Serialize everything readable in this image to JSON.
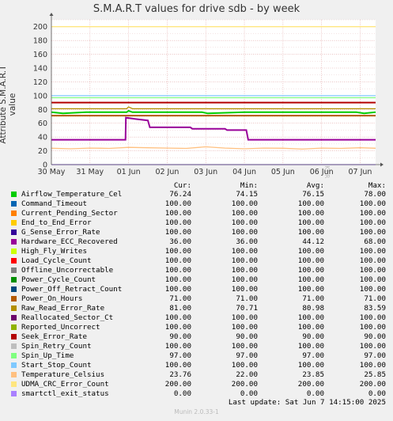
{
  "page": {
    "title": "S.M.A.R.T values for drive sdb - by week",
    "side_text": "RRDTOOL / TOBI OETIKER",
    "last_update": "Last update:  Sat Jun  7 14:15:00 2025",
    "footer": "Munin 2.0.33-1"
  },
  "legend_headers": {
    "cur": "Cur:",
    "min": "Min:",
    "avg": "Avg:",
    "max": "Max:"
  },
  "legend": [
    {
      "name": "Airflow_Temperature_Cel",
      "color": "#00cc00",
      "cur": "76.24",
      "min": "74.15",
      "avg": "76.15",
      "max": "78.00"
    },
    {
      "name": "Command_Timeout",
      "color": "#0066b3",
      "cur": "100.00",
      "min": "100.00",
      "avg": "100.00",
      "max": "100.00"
    },
    {
      "name": "Current_Pending_Sector",
      "color": "#ff8000",
      "cur": "100.00",
      "min": "100.00",
      "avg": "100.00",
      "max": "100.00"
    },
    {
      "name": "End_to_End_Error",
      "color": "#ffcc00",
      "cur": "100.00",
      "min": "100.00",
      "avg": "100.00",
      "max": "100.00"
    },
    {
      "name": "G_Sense_Error_Rate",
      "color": "#330099",
      "cur": "100.00",
      "min": "100.00",
      "avg": "100.00",
      "max": "100.00"
    },
    {
      "name": "Hardware_ECC_Recovered",
      "color": "#990099",
      "cur": "36.00",
      "min": "36.00",
      "avg": "44.12",
      "max": "68.00"
    },
    {
      "name": "High_Fly_Writes",
      "color": "#ccff00",
      "cur": "100.00",
      "min": "100.00",
      "avg": "100.00",
      "max": "100.00"
    },
    {
      "name": "Load_Cycle_Count",
      "color": "#ff0000",
      "cur": "100.00",
      "min": "100.00",
      "avg": "100.00",
      "max": "100.00"
    },
    {
      "name": "Offline_Uncorrectable",
      "color": "#808080",
      "cur": "100.00",
      "min": "100.00",
      "avg": "100.00",
      "max": "100.00"
    },
    {
      "name": "Power_Cycle_Count",
      "color": "#008f00",
      "cur": "100.00",
      "min": "100.00",
      "avg": "100.00",
      "max": "100.00"
    },
    {
      "name": "Power_Off_Retract_Count",
      "color": "#00487d",
      "cur": "100.00",
      "min": "100.00",
      "avg": "100.00",
      "max": "100.00"
    },
    {
      "name": "Power_On_Hours",
      "color": "#b35a00",
      "cur": "71.00",
      "min": "71.00",
      "avg": "71.00",
      "max": "71.00"
    },
    {
      "name": "Raw_Read_Error_Rate",
      "color": "#b38f00",
      "cur": "81.00",
      "min": "70.71",
      "avg": "80.98",
      "max": "83.59"
    },
    {
      "name": "Reallocated_Sector_Ct",
      "color": "#6b006b",
      "cur": "100.00",
      "min": "100.00",
      "avg": "100.00",
      "max": "100.00"
    },
    {
      "name": "Reported_Uncorrect",
      "color": "#8fb300",
      "cur": "100.00",
      "min": "100.00",
      "avg": "100.00",
      "max": "100.00"
    },
    {
      "name": "Seek_Error_Rate",
      "color": "#b30000",
      "cur": "90.00",
      "min": "90.00",
      "avg": "90.00",
      "max": "90.00"
    },
    {
      "name": "Spin_Retry_Count",
      "color": "#bebebe",
      "cur": "100.00",
      "min": "100.00",
      "avg": "100.00",
      "max": "100.00"
    },
    {
      "name": "Spin_Up_Time",
      "color": "#80ff80",
      "cur": "97.00",
      "min": "97.00",
      "avg": "97.00",
      "max": "97.00"
    },
    {
      "name": "Start_Stop_Count",
      "color": "#80c9ff",
      "cur": "100.00",
      "min": "100.00",
      "avg": "100.00",
      "max": "100.00"
    },
    {
      "name": "Temperature_Celsius",
      "color": "#ffc080",
      "cur": "23.76",
      "min": "22.00",
      "avg": "23.85",
      "max": "25.85"
    },
    {
      "name": "UDMA_CRC_Error_Count",
      "color": "#ffe680",
      "cur": "200.00",
      "min": "200.00",
      "avg": "200.00",
      "max": "200.00"
    },
    {
      "name": "smartctl_exit_status",
      "color": "#aa80ff",
      "cur": "0.00",
      "min": "0.00",
      "avg": "0.00",
      "max": "0.00"
    }
  ],
  "chart_data": {
    "type": "line",
    "title": "S.M.A.R.T values for drive sdb - by week",
    "ylabel": "Attribute S.M.A.R.T value",
    "ylim": [
      0,
      210
    ],
    "yticks": [
      0,
      20,
      40,
      60,
      80,
      100,
      120,
      140,
      160,
      180,
      200
    ],
    "xlim": [
      0,
      8.4
    ],
    "x_ticks": [
      {
        "label": "30 May",
        "x": 0
      },
      {
        "label": "31 May",
        "x": 1
      },
      {
        "label": "01 Jun",
        "x": 2
      },
      {
        "label": "02 Jun",
        "x": 3
      },
      {
        "label": "03 Jun",
        "x": 4
      },
      {
        "label": "04 Jun",
        "x": 5
      },
      {
        "label": "05 Jun",
        "x": 6
      },
      {
        "label": "06 Jun",
        "x": 7
      },
      {
        "label": "07 Jun",
        "x": 8
      }
    ],
    "grid": true,
    "series": [
      {
        "name": "UDMA_CRC_Error_Count",
        "color": "#ffe680",
        "x": [
          0,
          8.4
        ],
        "y": [
          200,
          200
        ]
      },
      {
        "name": "Start_Stop_Count",
        "color": "#80c9ff",
        "x": [
          0,
          8.4
        ],
        "y": [
          100,
          100
        ]
      },
      {
        "name": "Spin_Up_Time",
        "color": "#80ff80",
        "x": [
          0,
          8.4
        ],
        "y": [
          97,
          97
        ]
      },
      {
        "name": "Seek_Error_Rate",
        "color": "#b30000",
        "x": [
          0,
          8.4
        ],
        "y": [
          90,
          90
        ]
      },
      {
        "name": "Raw_Read_Error_Rate",
        "color": "#b38f00",
        "x": [
          0,
          1.95,
          2.0,
          2.1,
          3,
          4,
          5,
          6,
          7,
          8,
          8.4
        ],
        "y": [
          81,
          81,
          83.6,
          81,
          81,
          81,
          81,
          81,
          81,
          81,
          81
        ]
      },
      {
        "name": "Airflow_Temperature_Cel",
        "color": "#00cc00",
        "x": [
          0,
          0.3,
          0.9,
          1.95,
          2.0,
          2.1,
          3,
          3.9,
          4.05,
          5,
          6,
          7,
          7.9,
          8.1,
          8.4
        ],
        "y": [
          76,
          74.2,
          76,
          76,
          78,
          76,
          76,
          76,
          74.2,
          76,
          76,
          76,
          76,
          74.2,
          76
        ]
      },
      {
        "name": "Power_On_Hours",
        "color": "#b35a00",
        "x": [
          0,
          8.4
        ],
        "y": [
          71,
          71
        ]
      },
      {
        "name": "Hardware_ECC_Recovered",
        "color": "#990099",
        "x": [
          0,
          1.92,
          1.93,
          2.2,
          2.5,
          2.55,
          3.6,
          3.65,
          4.5,
          4.55,
          5.05,
          5.1,
          8.4
        ],
        "y": [
          36,
          36,
          68,
          66,
          64,
          54,
          54,
          52,
          52,
          50,
          50,
          36,
          36
        ]
      },
      {
        "name": "Temperature_Celsius",
        "color": "#ffc080",
        "x": [
          0,
          0.5,
          1,
          1.5,
          2,
          2.5,
          3,
          3.5,
          4,
          4.5,
          5,
          5.5,
          6,
          6.5,
          7,
          7.5,
          8,
          8.4
        ],
        "y": [
          23.8,
          23,
          24,
          23.5,
          25,
          24.5,
          24,
          23.5,
          25.8,
          24,
          23,
          24,
          23.8,
          22.5,
          24,
          23.5,
          24.5,
          23.8
        ]
      },
      {
        "name": "smartctl_exit_status",
        "color": "#aa80ff",
        "x": [
          0,
          8.4
        ],
        "y": [
          0,
          0
        ]
      }
    ]
  }
}
